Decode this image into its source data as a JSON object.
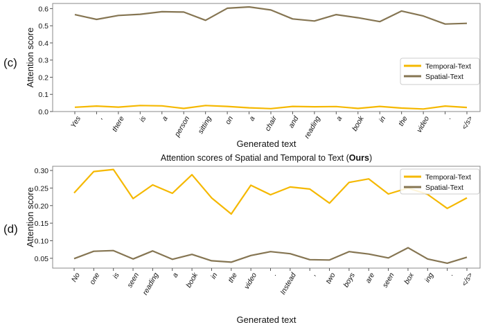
{
  "chart_data": [
    {
      "type": "line",
      "panel_label": "(c)",
      "title": "",
      "xlabel": "Generated text",
      "ylabel": "Attention score",
      "ylim": [
        0,
        0.63
      ],
      "yticks": [
        0.0,
        0.1,
        0.2,
        0.3,
        0.4,
        0.5,
        0.6
      ],
      "ytick_labels": [
        "0.0",
        "0.1",
        "0.2",
        "0.3",
        "0.4",
        "0.5",
        "0.6"
      ],
      "grid": false,
      "legend_placement": "center-right",
      "categories": [
        "Yes",
        ",",
        "there",
        "is",
        "a",
        "person",
        "sitting",
        "on",
        "a",
        "chair",
        "and",
        "reading",
        "a",
        "book",
        "in",
        "the",
        "video",
        ".",
        "</s>"
      ],
      "series": [
        {
          "name": "Temporal-Text",
          "color": "#f5b800",
          "values": [
            0.025,
            0.032,
            0.026,
            0.035,
            0.033,
            0.018,
            0.035,
            0.03,
            0.022,
            0.017,
            0.03,
            0.028,
            0.029,
            0.018,
            0.03,
            0.02,
            0.015,
            0.032,
            0.024
          ]
        },
        {
          "name": "Spatial-Text",
          "color": "#857552",
          "values": [
            0.565,
            0.537,
            0.56,
            0.567,
            0.582,
            0.58,
            0.532,
            0.602,
            0.61,
            0.592,
            0.54,
            0.528,
            0.565,
            0.547,
            0.524,
            0.586,
            0.557,
            0.51,
            0.514
          ]
        }
      ]
    },
    {
      "type": "line",
      "panel_label": "(d)",
      "title": "Attention scores of Spatial and Temporal to Text (",
      "title_bold": "Ours",
      "title_end": ")",
      "xlabel": "Generated text",
      "ylabel": "Attention score",
      "ylim": [
        0.022,
        0.312
      ],
      "yticks": [
        0.05,
        0.1,
        0.15,
        0.2,
        0.25,
        0.3
      ],
      "ytick_labels": [
        "0.05",
        "0.10",
        "0.15",
        "0.20",
        "0.25",
        "0.30"
      ],
      "grid": false,
      "legend_placement": "top-right",
      "categories": [
        "No",
        "one",
        "is",
        "seen",
        "reading",
        "a",
        "book",
        "in",
        "the",
        "video",
        ".",
        "Instead",
        ",",
        "two",
        "boys",
        "are",
        "seen",
        "box",
        "ing",
        ".",
        "</s>"
      ],
      "series": [
        {
          "name": "Temporal-Text",
          "color": "#f5b800",
          "values": [
            0.236,
            0.297,
            0.303,
            0.22,
            0.259,
            0.235,
            0.288,
            0.222,
            0.176,
            0.258,
            0.231,
            0.253,
            0.247,
            0.207,
            0.266,
            0.276,
            0.233,
            0.25,
            0.232,
            0.192,
            0.222
          ]
        },
        {
          "name": "Spatial-Text",
          "color": "#857552",
          "values": [
            0.049,
            0.07,
            0.072,
            0.048,
            0.071,
            0.047,
            0.061,
            0.043,
            0.039,
            0.058,
            0.069,
            0.063,
            0.046,
            0.045,
            0.069,
            0.062,
            0.051,
            0.08,
            0.048,
            0.036,
            0.053
          ]
        }
      ]
    }
  ]
}
